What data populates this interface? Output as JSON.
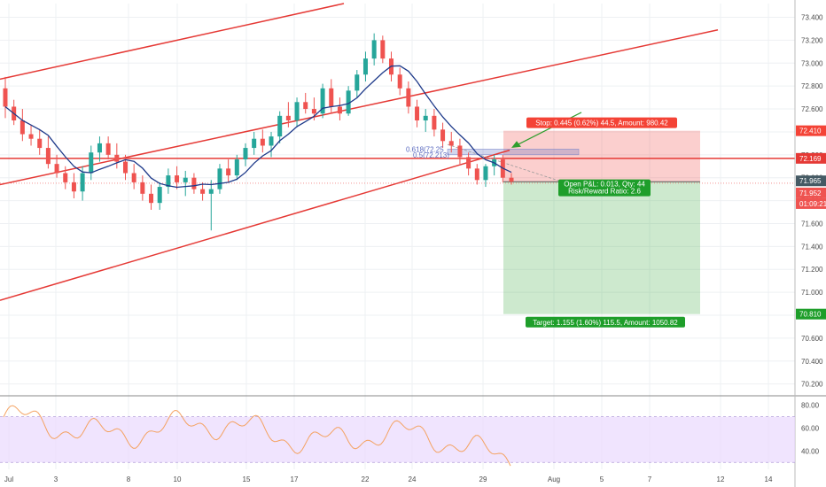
{
  "chart_data": {
    "type": "candlestick",
    "y_ticks": [
      "73.400",
      "73.200",
      "73.000",
      "72.800",
      "72.600",
      "72.400",
      "72.200",
      "72.000",
      "71.800",
      "71.600",
      "71.400",
      "71.200",
      "71.000",
      "70.800",
      "70.600",
      "70.400",
      "70.200"
    ],
    "y_tick_values": [
      73.4,
      73.2,
      73.0,
      72.8,
      72.6,
      72.4,
      72.2,
      72.0,
      71.8,
      71.6,
      71.4,
      71.2,
      71.0,
      70.8,
      70.6,
      70.4,
      70.2
    ],
    "ylim": [
      70.12,
      73.52
    ],
    "x_ticks": [
      "Jul",
      "3",
      "8",
      "10",
      "15",
      "17",
      "22",
      "24",
      "29",
      "Aug",
      "5",
      "7",
      "12",
      "14"
    ],
    "price_tags": {
      "stop_level": "72.410",
      "line_level": "72.169",
      "last_price": "71.965",
      "prev_price": "71.952",
      "countdown": "01:09:21",
      "target_level": "70.810"
    },
    "levels": {
      "stop": 72.41,
      "horizontal": 72.169,
      "entry": 71.965,
      "target": 70.81
    },
    "position": {
      "stop_label": "Stop: 0.445 (0.62%) 44.5, Amount: 980.42",
      "target_label": "Target: 1.155 (1.60%) 115.5, Amount: 1050.82",
      "pnl_label": "Open P&L: 0.013, Qty: 44",
      "rr_label": "Risk/Reward Ratio: 2.6"
    },
    "fib": {
      "label_618": "0.618(72.25",
      "label_5": "0.5(72.213)"
    },
    "rsi": {
      "ticks": [
        "80.00",
        "60.00",
        "40.00"
      ],
      "tick_values": [
        80,
        60,
        40
      ],
      "upper": 70,
      "lower": 30,
      "ylim": [
        24,
        86
      ]
    },
    "colors": {
      "up": "#26a69a",
      "down": "#ef5350",
      "trend": "#e53935",
      "ma": "#1e3a8a",
      "rsi_line": "#f4a261",
      "rsi_band": "#e9d8fd"
    },
    "candles": [
      {
        "o": 72.78,
        "h": 72.88,
        "l": 72.52,
        "c": 72.62
      },
      {
        "o": 72.62,
        "h": 72.68,
        "l": 72.46,
        "c": 72.5
      },
      {
        "o": 72.5,
        "h": 72.6,
        "l": 72.32,
        "c": 72.38
      },
      {
        "o": 72.38,
        "h": 72.46,
        "l": 72.28,
        "c": 72.34
      },
      {
        "o": 72.34,
        "h": 72.42,
        "l": 72.2,
        "c": 72.26
      },
      {
        "o": 72.26,
        "h": 72.36,
        "l": 72.08,
        "c": 72.12
      },
      {
        "o": 72.12,
        "h": 72.2,
        "l": 72.0,
        "c": 72.04
      },
      {
        "o": 72.04,
        "h": 72.1,
        "l": 71.9,
        "c": 71.96
      },
      {
        "o": 71.96,
        "h": 72.04,
        "l": 71.82,
        "c": 71.88
      },
      {
        "o": 71.88,
        "h": 72.1,
        "l": 71.8,
        "c": 72.04
      },
      {
        "o": 72.04,
        "h": 72.28,
        "l": 71.98,
        "c": 72.22
      },
      {
        "o": 72.22,
        "h": 72.36,
        "l": 72.14,
        "c": 72.3
      },
      {
        "o": 72.3,
        "h": 72.36,
        "l": 72.16,
        "c": 72.2
      },
      {
        "o": 72.2,
        "h": 72.3,
        "l": 72.08,
        "c": 72.14
      },
      {
        "o": 72.14,
        "h": 72.2,
        "l": 71.98,
        "c": 72.04
      },
      {
        "o": 72.04,
        "h": 72.12,
        "l": 71.9,
        "c": 71.96
      },
      {
        "o": 71.96,
        "h": 72.02,
        "l": 71.8,
        "c": 71.86
      },
      {
        "o": 71.86,
        "h": 71.94,
        "l": 71.72,
        "c": 71.78
      },
      {
        "o": 71.78,
        "h": 71.96,
        "l": 71.72,
        "c": 71.92
      },
      {
        "o": 71.92,
        "h": 72.08,
        "l": 71.86,
        "c": 72.02
      },
      {
        "o": 72.02,
        "h": 72.1,
        "l": 71.9,
        "c": 71.96
      },
      {
        "o": 71.96,
        "h": 72.06,
        "l": 71.84,
        "c": 72.0
      },
      {
        "o": 72.0,
        "h": 72.04,
        "l": 71.86,
        "c": 71.9
      },
      {
        "o": 71.9,
        "h": 71.96,
        "l": 71.8,
        "c": 71.86
      },
      {
        "o": 71.86,
        "h": 71.98,
        "l": 71.54,
        "c": 71.9
      },
      {
        "o": 71.9,
        "h": 72.12,
        "l": 71.86,
        "c": 72.08
      },
      {
        "o": 72.08,
        "h": 72.16,
        "l": 71.96,
        "c": 72.02
      },
      {
        "o": 72.02,
        "h": 72.2,
        "l": 71.98,
        "c": 72.16
      },
      {
        "o": 72.16,
        "h": 72.3,
        "l": 72.1,
        "c": 72.26
      },
      {
        "o": 72.26,
        "h": 72.4,
        "l": 72.2,
        "c": 72.34
      },
      {
        "o": 72.34,
        "h": 72.42,
        "l": 72.22,
        "c": 72.28
      },
      {
        "o": 72.28,
        "h": 72.4,
        "l": 72.18,
        "c": 72.36
      },
      {
        "o": 72.36,
        "h": 72.58,
        "l": 72.3,
        "c": 72.54
      },
      {
        "o": 72.54,
        "h": 72.66,
        "l": 72.44,
        "c": 72.5
      },
      {
        "o": 72.5,
        "h": 72.7,
        "l": 72.44,
        "c": 72.66
      },
      {
        "o": 72.66,
        "h": 72.74,
        "l": 72.56,
        "c": 72.6
      },
      {
        "o": 72.6,
        "h": 72.7,
        "l": 72.5,
        "c": 72.56
      },
      {
        "o": 72.56,
        "h": 72.82,
        "l": 72.52,
        "c": 72.78
      },
      {
        "o": 72.78,
        "h": 72.86,
        "l": 72.56,
        "c": 72.62
      },
      {
        "o": 72.62,
        "h": 72.7,
        "l": 72.5,
        "c": 72.56
      },
      {
        "o": 72.56,
        "h": 72.8,
        "l": 72.54,
        "c": 72.76
      },
      {
        "o": 72.76,
        "h": 72.94,
        "l": 72.7,
        "c": 72.9
      },
      {
        "o": 72.9,
        "h": 73.1,
        "l": 72.84,
        "c": 73.04
      },
      {
        "o": 73.04,
        "h": 73.26,
        "l": 72.98,
        "c": 73.2
      },
      {
        "o": 73.2,
        "h": 73.24,
        "l": 73.0,
        "c": 73.04
      },
      {
        "o": 73.04,
        "h": 73.1,
        "l": 72.84,
        "c": 72.9
      },
      {
        "o": 72.9,
        "h": 72.96,
        "l": 72.72,
        "c": 72.78
      },
      {
        "o": 72.78,
        "h": 72.84,
        "l": 72.56,
        "c": 72.62
      },
      {
        "o": 72.62,
        "h": 72.68,
        "l": 72.44,
        "c": 72.5
      },
      {
        "o": 72.5,
        "h": 72.6,
        "l": 72.4,
        "c": 72.54
      },
      {
        "o": 72.54,
        "h": 72.6,
        "l": 72.36,
        "c": 72.42
      },
      {
        "o": 72.42,
        "h": 72.48,
        "l": 72.26,
        "c": 72.32
      },
      {
        "o": 72.32,
        "h": 72.4,
        "l": 72.22,
        "c": 72.28
      },
      {
        "o": 72.28,
        "h": 72.34,
        "l": 72.12,
        "c": 72.18
      },
      {
        "o": 72.18,
        "h": 72.22,
        "l": 72.02,
        "c": 72.08
      },
      {
        "o": 72.08,
        "h": 72.12,
        "l": 71.94,
        "c": 71.98
      },
      {
        "o": 71.98,
        "h": 72.12,
        "l": 71.92,
        "c": 72.1
      },
      {
        "o": 72.1,
        "h": 72.2,
        "l": 72.02,
        "c": 72.16
      },
      {
        "o": 72.16,
        "h": 72.2,
        "l": 71.96,
        "c": 72.0
      },
      {
        "o": 72.0,
        "h": 72.04,
        "l": 71.94,
        "c": 71.965
      }
    ]
  }
}
